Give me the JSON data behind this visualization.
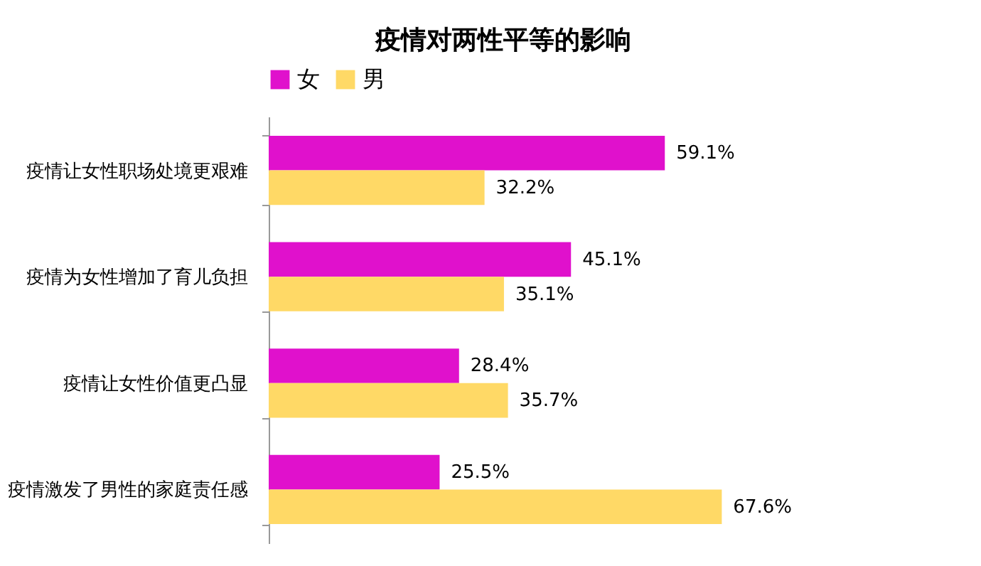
{
  "chart_data": {
    "type": "bar",
    "orientation": "horizontal",
    "title": "疫情对两性平等的影响",
    "categories": [
      "疫情让女性职场处境更艰难",
      "疫情为女性增加了育儿负担",
      "疫情让女性价值更凸显",
      "疫情激发了男性的家庭责任感"
    ],
    "series": [
      {
        "name": "女",
        "color": "#e011cc",
        "values": [
          59.1,
          45.1,
          28.4,
          25.5
        ],
        "value_labels": [
          "59.1%",
          "45.1%",
          "28.4%",
          "25.5%"
        ]
      },
      {
        "name": "男",
        "color": "#ffd966",
        "values": [
          32.2,
          35.1,
          35.7,
          67.6
        ],
        "value_labels": [
          "32.2%",
          "35.1%",
          "35.7%",
          "67.6%"
        ]
      }
    ],
    "legend": "top",
    "grid": false
  }
}
